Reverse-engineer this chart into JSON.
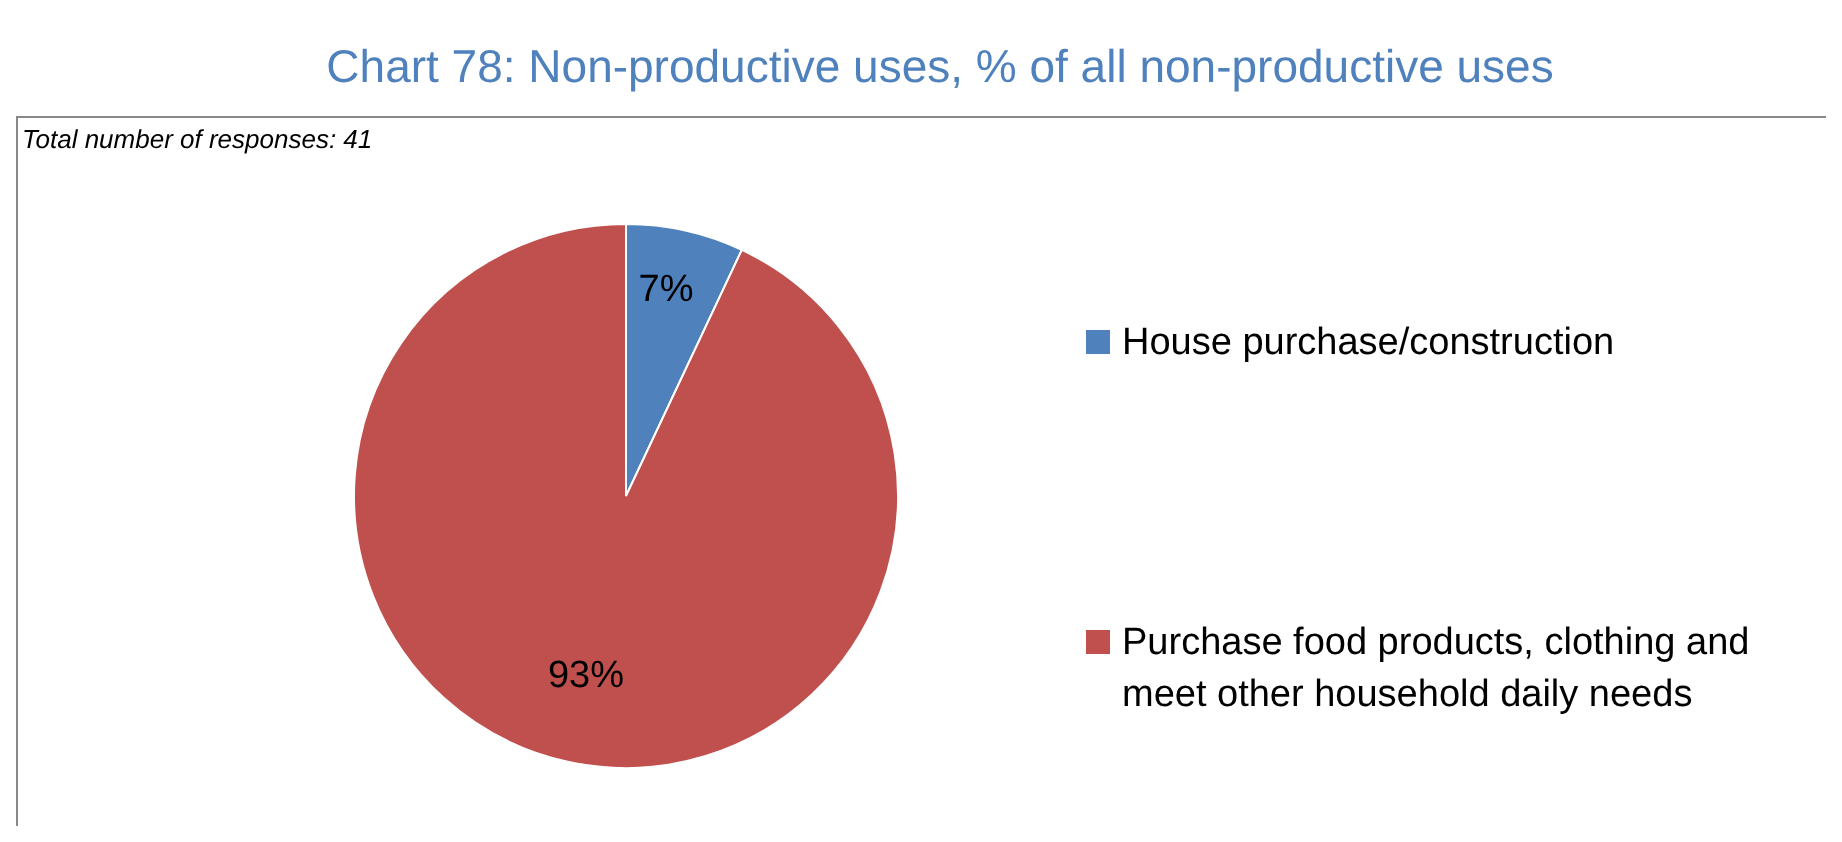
{
  "chart_data": {
    "type": "pie",
    "title": "Chart 78: Non-productive uses, % of all non-productive uses",
    "annotations": [
      "Total number of responses: 41"
    ],
    "categories": [
      "House purchase/construction",
      "Purchase food products, clothing and meet other household daily needs"
    ],
    "values": [
      7,
      93
    ],
    "colors": [
      "#4f81bd",
      "#c0504d"
    ],
    "value_labels": [
      "7%",
      "93%"
    ],
    "legend": "right"
  }
}
